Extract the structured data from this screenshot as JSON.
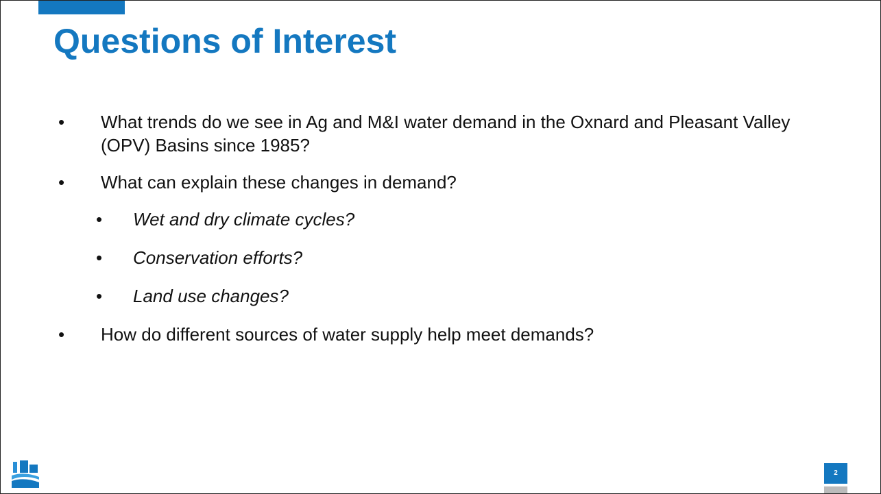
{
  "title": "Questions of Interest",
  "bullets": [
    {
      "text": "What trends do we see in Ag and M&I water demand in the Oxnard and Pleasant Valley (OPV) Basins since 1985?",
      "level": 1
    },
    {
      "text": "What can explain these changes in demand?",
      "level": 1
    },
    {
      "text": "Wet and dry climate cycles?",
      "level": 2
    },
    {
      "text": "Conservation efforts?",
      "level": 2
    },
    {
      "text": "Land use changes?",
      "level": 2
    },
    {
      "text": "How do different sources of water supply help meet demands?",
      "level": 1
    }
  ],
  "page_number": "2"
}
